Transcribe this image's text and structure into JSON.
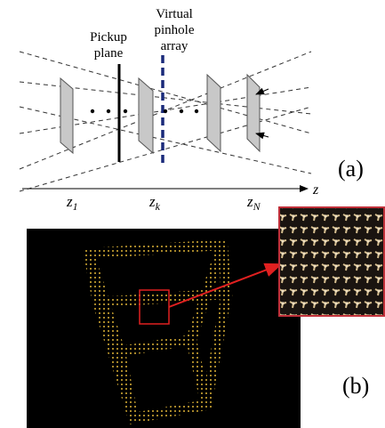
{
  "diagram": {
    "pickup_label": [
      "Pickup",
      "plane"
    ],
    "pinhole_label": [
      "Virtual",
      "pinhole",
      "array"
    ],
    "panel_a": "(a)",
    "axis_label": "z",
    "positions": [
      {
        "var": "z",
        "sub": "1"
      },
      {
        "var": "z",
        "sub": "k"
      },
      {
        "var": "z",
        "sub": "N"
      }
    ]
  },
  "image": {
    "panel_b": "(b)"
  }
}
